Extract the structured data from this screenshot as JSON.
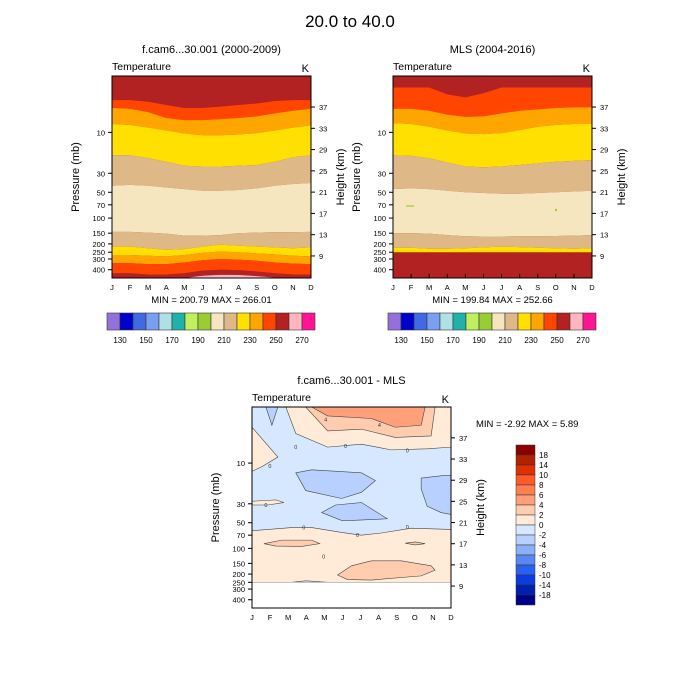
{
  "page_title": "20.0 to  40.0",
  "chart_data": [
    {
      "id": "model",
      "type": "heatmap",
      "title": "f.cam6...30.001 (2000-2009)",
      "left_label": "Temperature",
      "right_label": "K",
      "ylabel": "Pressure (mb)",
      "ylabel_right": "Height (km)",
      "x_ticks": [
        "J",
        "F",
        "M",
        "A",
        "M",
        "J",
        "J",
        "A",
        "S",
        "O",
        "N",
        "D"
      ],
      "y_ticks": [
        "10",
        "30",
        "50",
        "70",
        "100",
        "150",
        "200",
        "250",
        "300",
        "400"
      ],
      "y_ticks_right": [
        "37",
        "33",
        "29",
        "25",
        "21",
        "17",
        "13",
        "9"
      ],
      "stats": "MIN = 200.79  MAX = 266.01",
      "grid": false,
      "bands_top_to_bottom": [
        {
          "level": 255,
          "color": "#B22222",
          "boundary_p": [
            4.2,
            4.2,
            4.4,
            4.8,
            5.2,
            5.2,
            5.0,
            4.8,
            4.6,
            4.3,
            4.2,
            4.2
          ]
        },
        {
          "level": 245,
          "color": "#FF4500",
          "boundary_p": [
            5.2,
            5.3,
            5.8,
            6.8,
            7.2,
            7.2,
            7.0,
            6.8,
            6.5,
            6.0,
            5.6,
            5.3
          ]
        },
        {
          "level": 235,
          "color": "#FFA500",
          "boundary_p": [
            8.0,
            8.2,
            8.8,
            9.5,
            10.3,
            10.8,
            10.8,
            10.6,
            10.2,
            9.5,
            8.8,
            8.3
          ]
        },
        {
          "level": 225,
          "color": "#FFE000",
          "boundary_p": [
            18.5,
            18.5,
            20,
            22,
            24.5,
            25,
            25,
            24.5,
            24,
            22,
            19.5,
            18.5
          ]
        },
        {
          "level": 215,
          "color": "#DEB887",
          "boundary_p": [
            42,
            41,
            42,
            44,
            46,
            48,
            48,
            47,
            45,
            42,
            40,
            39
          ]
        },
        {
          "level": 205,
          "color": "#F5E6C0",
          "boundary_p": [
            145,
            145,
            148,
            152,
            160,
            160,
            158,
            150,
            148,
            146,
            146,
            145
          ]
        },
        {
          "level": 215,
          "color": "#DEB887",
          "boundary_p": [
            215,
            215,
            225,
            235,
            230,
            215,
            205,
            210,
            215,
            220,
            225,
            220
          ]
        },
        {
          "level": 225,
          "color": "#FFE000",
          "boundary_p": [
            270,
            270,
            275,
            280,
            270,
            255,
            245,
            250,
            258,
            265,
            275,
            280
          ]
        },
        {
          "level": 235,
          "color": "#FFA500",
          "boundary_p": [
            335,
            335,
            345,
            345,
            330,
            310,
            300,
            305,
            315,
            330,
            340,
            345
          ]
        },
        {
          "level": 245,
          "color": "#FF4500",
          "boundary_p": [
            440,
            440,
            455,
            455,
            440,
            410,
            400,
            405,
            420,
            440,
            455,
            455
          ]
        },
        {
          "level": 255,
          "color": "#B22222",
          "boundary_p": [
            500,
            500,
            500,
            500,
            500,
            470,
            460,
            462,
            475,
            495,
            500,
            500
          ]
        },
        {
          "level": 265,
          "color": "#FFB6C1",
          "boundary_p": [
            500,
            500,
            500,
            500,
            500,
            500,
            500,
            500,
            500,
            500,
            500,
            500
          ]
        }
      ]
    },
    {
      "id": "obs",
      "type": "heatmap",
      "title": "MLS (2004-2016)",
      "left_label": "Temperature",
      "right_label": "K",
      "ylabel": "Pressure (mb)",
      "ylabel_right": "Height (km)",
      "x_ticks": [
        "J",
        "F",
        "M",
        "A",
        "M",
        "J",
        "J",
        "A",
        "S",
        "O",
        "N",
        "D"
      ],
      "y_ticks": [
        "10",
        "30",
        "50",
        "70",
        "100",
        "150",
        "200",
        "250",
        "300",
        "400"
      ],
      "y_ticks_right": [
        "37",
        "33",
        "29",
        "25",
        "21",
        "17",
        "13",
        "9"
      ],
      "stats": "MIN = 199.84  MAX = 252.66",
      "grid": false,
      "missing_below_p": 250,
      "bands_top_to_bottom": [
        {
          "level": 255,
          "color": "#B22222",
          "boundary_p": [
            3.0,
            3.0,
            3.0,
            3.6,
            3.9,
            3.5,
            3.0,
            3.0,
            3.0,
            3.0,
            3.0,
            3.0
          ]
        },
        {
          "level": 245,
          "color": "#FF4500",
          "boundary_p": [
            5.3,
            5.3,
            5.6,
            6.2,
            6.6,
            6.5,
            6.0,
            5.6,
            5.4,
            5.2,
            5.1,
            5.1
          ]
        },
        {
          "level": 235,
          "color": "#FFA500",
          "boundary_p": [
            7.8,
            8.0,
            8.6,
            9.5,
            10.3,
            10.5,
            10.2,
            9.4,
            8.6,
            8.2,
            8.0,
            8.0
          ]
        },
        {
          "level": 225,
          "color": "#FFE000",
          "boundary_p": [
            18.5,
            18.8,
            20,
            22.5,
            25,
            25.5,
            25,
            24,
            23,
            22,
            21.5,
            21
          ]
        },
        {
          "level": 215,
          "color": "#DEB887",
          "boundary_p": [
            46,
            45,
            46,
            48,
            50,
            51,
            52,
            52,
            51,
            50,
            49,
            48
          ]
        },
        {
          "level": 205,
          "color": "#F5E6C0",
          "boundary_p": [
            150,
            150,
            152,
            158,
            163,
            164,
            164,
            163,
            163,
            162,
            160,
            158
          ]
        },
        {
          "level": 215,
          "color": "#DEB887",
          "boundary_p": [
            222,
            222,
            228,
            228,
            225,
            220,
            215,
            218,
            222,
            225,
            228,
            225
          ]
        },
        {
          "level": 225,
          "color": "#FFE000",
          "boundary_p": [
            250,
            250,
            250,
            250,
            250,
            250,
            250,
            250,
            250,
            250,
            250,
            250
          ]
        }
      ]
    },
    {
      "id": "diff",
      "type": "heatmap",
      "title": "f.cam6...30.001 - MLS",
      "left_label": "Temperature",
      "right_label": "K",
      "ylabel": "Pressure (mb)",
      "ylabel_right": "Height (km)",
      "x_ticks": [
        "J",
        "F",
        "M",
        "A",
        "M",
        "J",
        "J",
        "A",
        "S",
        "O",
        "N",
        "D"
      ],
      "y_ticks": [
        "10",
        "30",
        "50",
        "70",
        "100",
        "150",
        "200",
        "250",
        "300",
        "400"
      ],
      "y_ticks_right": [
        "37",
        "33",
        "29",
        "25",
        "21",
        "17",
        "13",
        "9"
      ],
      "stats": "MIN =  -2.92  MAX =   5.89",
      "grid": false,
      "missing_below_p": 250,
      "regions_description": "Positive 0-4 K above ~7 mb from Mar-Nov (max 4-6 near 3-4 mb Jun-Sep); negative 0 to -4 K between ~7 and ~60 mb; positive 0-4 K from ~60 to 250 mb with 2-4 K patch 150-220 mb Jun-Nov",
      "contour_labels": [
        "4",
        "4",
        "0",
        "0",
        "0",
        "0",
        "0",
        "0",
        "0",
        "0",
        "0"
      ],
      "legend_levels": [
        "18",
        "14",
        "10",
        "8",
        "6",
        "4",
        "2",
        "0",
        "-2",
        "-4",
        "-6",
        "-8",
        "-10",
        "-14",
        "-18"
      ],
      "legend_colors": [
        "#8B0000",
        "#B22200",
        "#E03000",
        "#FF5A28",
        "#FF7F50",
        "#FFA07A",
        "#FFCCB0",
        "#FFEBD8",
        "#D6E8FF",
        "#B8D0FF",
        "#8CB0F8",
        "#5A88F0",
        "#2A60F0",
        "#0A3CE0",
        "#0020B0",
        "#000088"
      ]
    }
  ],
  "colorbar_top": {
    "labels": [
      "130",
      "150",
      "170",
      "190",
      "210",
      "230",
      "250",
      "270"
    ],
    "colors": [
      "#9370DB",
      "#0000CD",
      "#4169E1",
      "#7B9FF0",
      "#B0E0E6",
      "#20B2AA",
      "#C0F060",
      "#9ACD32",
      "#F5E6C0",
      "#DEB887",
      "#FFE000",
      "#FFA500",
      "#FF4500",
      "#B22222",
      "#FFB6C1",
      "#FF1493"
    ]
  }
}
